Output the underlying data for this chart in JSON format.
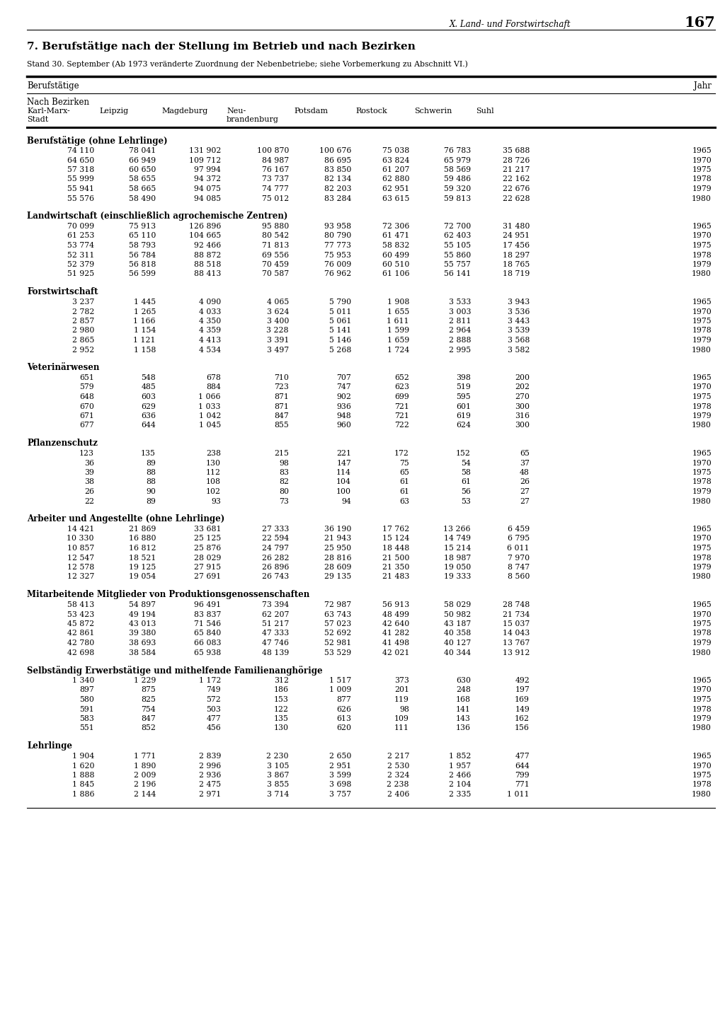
{
  "page_header_right": "X. Land- und Forstwirtschaft",
  "page_number": "167",
  "title": "7. Berufstätige nach der Stellung im Betrieb und nach Bezirken",
  "subtitle": "Stand 30. September (Ab 1973 veränderte Zuordnung der Nebenbetriebe; siehe Vorbemerkung zu Abschnitt VI.)",
  "col_header_left": "Berufstätige",
  "col_header_right": "Jahr",
  "sub_header": "Nach Bezirken",
  "columns": [
    "Karl-Marx-\nStadt",
    "Leipzig",
    "Magdeburg",
    "Neu-\nbrandenburg",
    "Potsdam",
    "Rostock",
    "Schwerin",
    "Suhl"
  ],
  "sections": [
    {
      "title": "Berufstätige (ohne Lehrlinge)",
      "rows": [
        [
          "74 110",
          "78 041",
          "131 902",
          "100 870",
          "100 676",
          "75 038",
          "76 783",
          "35 688",
          "1965"
        ],
        [
          "64 650",
          "66 949",
          "109 712",
          "84 987",
          "86 695",
          "63 824",
          "65 979",
          "28 726",
          "1970"
        ],
        [
          "57 318",
          "60 650",
          "97 994",
          "76 167",
          "83 850",
          "61 207",
          "58 569",
          "21 217",
          "1975"
        ],
        [
          "55 999",
          "58 655",
          "94 372",
          "73 737",
          "82 134",
          "62 880",
          "59 486",
          "22 162",
          "1978"
        ],
        [
          "55 941",
          "58 665",
          "94 075",
          "74 777",
          "82 203",
          "62 951",
          "59 320",
          "22 676",
          "1979"
        ],
        [
          "55 576",
          "58 490",
          "94 085",
          "75 012",
          "83 284",
          "63 615",
          "59 813",
          "22 628",
          "1980"
        ]
      ]
    },
    {
      "title": "Landwirtschaft (einschließlich agrochemische Zentren)",
      "rows": [
        [
          "70 099",
          "75 913",
          "126 896",
          "95 880",
          "93 958",
          "72 306",
          "72 700",
          "31 480",
          "1965"
        ],
        [
          "61 253",
          "65 110",
          "104 665",
          "80 542",
          "80 790",
          "61 471",
          "62 403",
          "24 951",
          "1970"
        ],
        [
          "53 774",
          "58 793",
          "92 466",
          "71 813",
          "77 773",
          "58 832",
          "55 105",
          "17 456",
          "1975"
        ],
        [
          "52 311",
          "56 784",
          "88 872",
          "69 556",
          "75 953",
          "60 499",
          "55 860",
          "18 297",
          "1978"
        ],
        [
          "52 379",
          "56 818",
          "88 518",
          "70 459",
          "76 009",
          "60 510",
          "55 757",
          "18 765",
          "1979"
        ],
        [
          "51 925",
          "56 599",
          "88 413",
          "70 587",
          "76 962",
          "61 106",
          "56 141",
          "18 719",
          "1980"
        ]
      ]
    },
    {
      "title": "Forstwirtschaft",
      "rows": [
        [
          "3 237",
          "1 445",
          "4 090",
          "4 065",
          "5 790",
          "1 908",
          "3 533",
          "3 943",
          "1965"
        ],
        [
          "2 782",
          "1 265",
          "4 033",
          "3 624",
          "5 011",
          "1 655",
          "3 003",
          "3 536",
          "1970"
        ],
        [
          "2 857",
          "1 166",
          "4 350",
          "3 400",
          "5 061",
          "1 611",
          "2 811",
          "3 443",
          "1975"
        ],
        [
          "2 980",
          "1 154",
          "4 359",
          "3 228",
          "5 141",
          "1 599",
          "2 964",
          "3 539",
          "1978"
        ],
        [
          "2 865",
          "1 121",
          "4 413",
          "3 391",
          "5 146",
          "1 659",
          "2 888",
          "3 568",
          "1979"
        ],
        [
          "2 952",
          "1 158",
          "4 534",
          "3 497",
          "5 268",
          "1 724",
          "2 995",
          "3 582",
          "1980"
        ]
      ]
    },
    {
      "title": "Veterinärwesen",
      "rows": [
        [
          "651",
          "548",
          "678",
          "710",
          "707",
          "652",
          "398",
          "200",
          "1965"
        ],
        [
          "579",
          "485",
          "884",
          "723",
          "747",
          "623",
          "519",
          "202",
          "1970"
        ],
        [
          "648",
          "603",
          "1 066",
          "871",
          "902",
          "699",
          "595",
          "270",
          "1975"
        ],
        [
          "670",
          "629",
          "1 033",
          "871",
          "936",
          "721",
          "601",
          "300",
          "1978"
        ],
        [
          "671",
          "636",
          "1 042",
          "847",
          "948",
          "721",
          "619",
          "316",
          "1979"
        ],
        [
          "677",
          "644",
          "1 045",
          "855",
          "960",
          "722",
          "624",
          "300",
          "1980"
        ]
      ]
    },
    {
      "title": "Pflanzenschutz",
      "rows": [
        [
          "123",
          "135",
          "238",
          "215",
          "221",
          "172",
          "152",
          "65",
          "1965"
        ],
        [
          "36",
          "89",
          "130",
          "98",
          "147",
          "75",
          "54",
          "37",
          "1970"
        ],
        [
          "39",
          "88",
          "112",
          "83",
          "114",
          "65",
          "58",
          "48",
          "1975"
        ],
        [
          "38",
          "88",
          "108",
          "82",
          "104",
          "61",
          "61",
          "26",
          "1978"
        ],
        [
          "26",
          "90",
          "102",
          "80",
          "100",
          "61",
          "56",
          "27",
          "1979"
        ],
        [
          "22",
          "89",
          "93",
          "73",
          "94",
          "63",
          "53",
          "27",
          "1980"
        ]
      ]
    },
    {
      "title": "Arbeiter und Angestellte (ohne Lehrlinge)",
      "rows": [
        [
          "14 421",
          "21 869",
          "33 681",
          "27 333",
          "36 190",
          "17 762",
          "13 266",
          "6 459",
          "1965"
        ],
        [
          "10 330",
          "16 880",
          "25 125",
          "22 594",
          "21 943",
          "15 124",
          "14 749",
          "6 795",
          "1970"
        ],
        [
          "10 857",
          "16 812",
          "25 876",
          "24 797",
          "25 950",
          "18 448",
          "15 214",
          "6 011",
          "1975"
        ],
        [
          "12 547",
          "18 521",
          "28 029",
          "26 282",
          "28 816",
          "21 500",
          "18 987",
          "7 970",
          "1978"
        ],
        [
          "12 578",
          "19 125",
          "27 915",
          "26 896",
          "28 609",
          "21 350",
          "19 050",
          "8 747",
          "1979"
        ],
        [
          "12 327",
          "19 054",
          "27 691",
          "26 743",
          "29 135",
          "21 483",
          "19 333",
          "8 560",
          "1980"
        ]
      ]
    },
    {
      "title": "Mitarbeitende Mitglieder von Produktionsgenossenschaften",
      "rows": [
        [
          "58 413",
          "54 897",
          "96 491",
          "73 394",
          "72 987",
          "56 913",
          "58 029",
          "28 748",
          "1965"
        ],
        [
          "53 423",
          "49 194",
          "83 837",
          "62 207",
          "63 743",
          "48 499",
          "50 982",
          "21 734",
          "1970"
        ],
        [
          "45 872",
          "43 013",
          "71 546",
          "51 217",
          "57 023",
          "42 640",
          "43 187",
          "15 037",
          "1975"
        ],
        [
          "42 861",
          "39 380",
          "65 840",
          "47 333",
          "52 692",
          "41 282",
          "40 358",
          "14 043",
          "1978"
        ],
        [
          "42 780",
          "38 693",
          "66 083",
          "47 746",
          "52 981",
          "41 498",
          "40 127",
          "13 767",
          "1979"
        ],
        [
          "42 698",
          "38 584",
          "65 938",
          "48 139",
          "53 529",
          "42 021",
          "40 344",
          "13 912",
          "1980"
        ]
      ]
    },
    {
      "title": "Selbständig Erwerbstätige und mithelfende Familienanghörige",
      "rows": [
        [
          "1 340",
          "1 229",
          "1 172",
          "312",
          "1 517",
          "373",
          "630",
          "492",
          "1965"
        ],
        [
          "897",
          "875",
          "749",
          "186",
          "1 009",
          "201",
          "248",
          "197",
          "1970"
        ],
        [
          "580",
          "825",
          "572",
          "153",
          "877",
          "119",
          "168",
          "169",
          "1975"
        ],
        [
          "591",
          "754",
          "503",
          "122",
          "626",
          "98",
          "141",
          "149",
          "1978"
        ],
        [
          "583",
          "847",
          "477",
          "135",
          "613",
          "109",
          "143",
          "162",
          "1979"
        ],
        [
          "551",
          "852",
          "456",
          "130",
          "620",
          "111",
          "136",
          "156",
          "1980"
        ]
      ]
    },
    {
      "title": "Lehrlinge",
      "rows": [
        [
          "1 904",
          "1 771",
          "2 839",
          "2 230",
          "2 650",
          "2 217",
          "1 852",
          "477",
          "1965"
        ],
        [
          "1 620",
          "1 890",
          "2 996",
          "3 105",
          "2 951",
          "2 530",
          "1 957",
          "644",
          "1970"
        ],
        [
          "1 888",
          "2 009",
          "2 936",
          "3 867",
          "3 599",
          "2 324",
          "2 466",
          "799",
          "1975"
        ],
        [
          "1 845",
          "2 196",
          "2 475",
          "3 855",
          "3 698",
          "2 238",
          "2 104",
          "771",
          "1978"
        ],
        [
          "1 886",
          "2 144",
          "2 971",
          "3 714",
          "3 757",
          "2 406",
          "2 335",
          "1 011",
          "1980"
        ]
      ]
    }
  ]
}
